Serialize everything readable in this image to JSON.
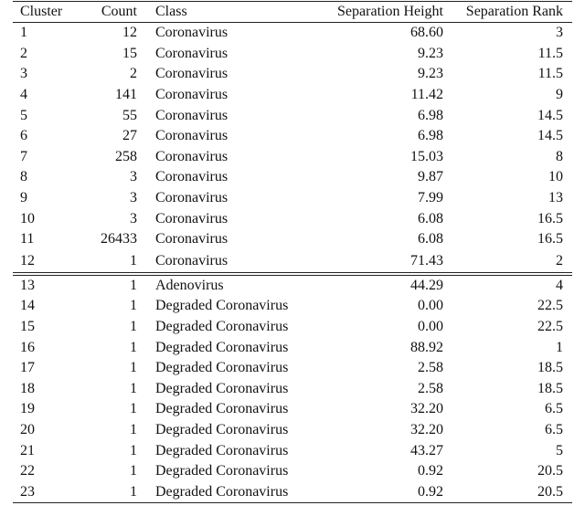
{
  "table": {
    "columns": [
      "Cluster",
      "Count",
      "Class",
      "Separation Height",
      "Separation Rank"
    ],
    "rows": [
      [
        "1",
        "12",
        "Coronavirus",
        "68.60",
        "3"
      ],
      [
        "2",
        "15",
        "Coronavirus",
        "9.23",
        "11.5"
      ],
      [
        "3",
        "2",
        "Coronavirus",
        "9.23",
        "11.5"
      ],
      [
        "4",
        "141",
        "Coronavirus",
        "11.42",
        "9"
      ],
      [
        "5",
        "55",
        "Coronavirus",
        "6.98",
        "14.5"
      ],
      [
        "6",
        "27",
        "Coronavirus",
        "6.98",
        "14.5"
      ],
      [
        "7",
        "258",
        "Coronavirus",
        "15.03",
        "8"
      ],
      [
        "8",
        "3",
        "Coronavirus",
        "9.87",
        "10"
      ],
      [
        "9",
        "3",
        "Coronavirus",
        "7.99",
        "13"
      ],
      [
        "10",
        "3",
        "Coronavirus",
        "6.08",
        "16.5"
      ],
      [
        "11",
        "26433",
        "Coronavirus",
        "6.08",
        "16.5"
      ],
      [
        "12",
        "1",
        "Coronavirus",
        "71.43",
        "2"
      ],
      [
        "13",
        "1",
        "Adenovirus",
        "44.29",
        "4"
      ],
      [
        "14",
        "1",
        "Degraded Coronavirus",
        "0.00",
        "22.5"
      ],
      [
        "15",
        "1",
        "Degraded Coronavirus",
        "0.00",
        "22.5"
      ],
      [
        "16",
        "1",
        "Degraded Coronavirus",
        "88.92",
        "1"
      ],
      [
        "17",
        "1",
        "Degraded Coronavirus",
        "2.58",
        "18.5"
      ],
      [
        "18",
        "1",
        "Degraded Coronavirus",
        "2.58",
        "18.5"
      ],
      [
        "19",
        "1",
        "Degraded Coronavirus",
        "32.20",
        "6.5"
      ],
      [
        "20",
        "1",
        "Degraded Coronavirus",
        "32.20",
        "6.5"
      ],
      [
        "21",
        "1",
        "Degraded Coronavirus",
        "43.27",
        "5"
      ],
      [
        "22",
        "1",
        "Degraded Coronavirus",
        "0.92",
        "20.5"
      ],
      [
        "23",
        "1",
        "Degraded Coronavirus",
        "0.92",
        "20.5"
      ]
    ]
  }
}
